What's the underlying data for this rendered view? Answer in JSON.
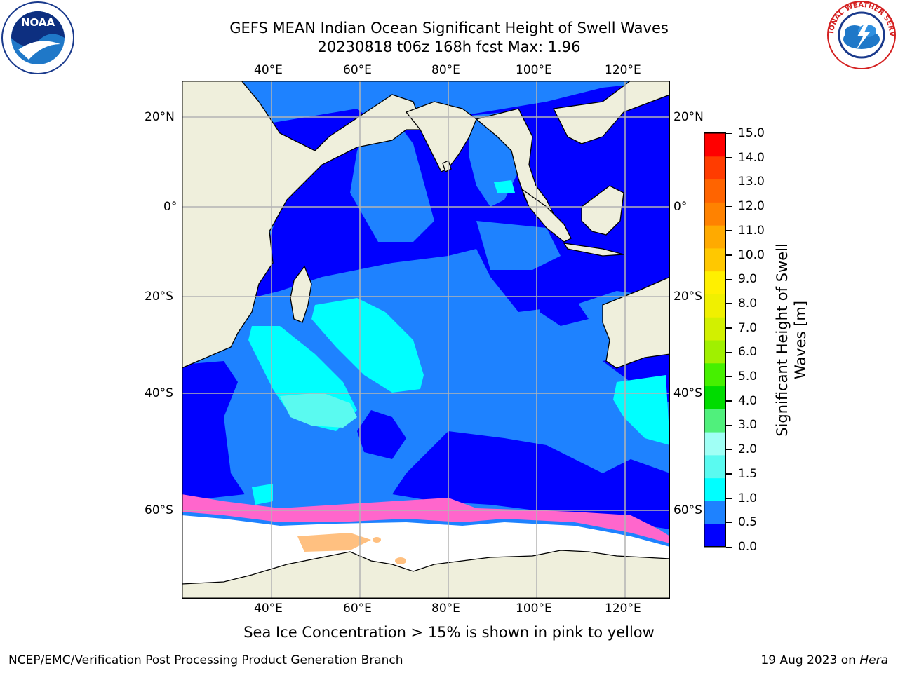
{
  "header": {
    "title_line1": "GEFS MEAN Indian Ocean Significant Height of Swell Waves",
    "title_line2": "20230818 t06z 168h fcst   Max: 1.96"
  },
  "logos": {
    "noara_text": "NOAA",
    "noaa_ring_text": "NATIONAL OCEANIC AND ATMOSPHERIC ADMINISTRATION · U.S. DEPARTMENT OF COMMERCE",
    "nws_ring_text": "NATIONAL WEATHER SERVICE"
  },
  "map": {
    "lon_ticks": [
      "40°E",
      "60°E",
      "80°E",
      "100°E",
      "120°E"
    ],
    "lat_ticks_left": [
      "20°N",
      "0°",
      "20°S",
      "40°S",
      "60°S"
    ],
    "lat_ticks_right": [
      "20°N",
      "0°",
      "20°S",
      "40°S",
      "60°S"
    ],
    "colors": {
      "land": "#efefdc",
      "ice": "#ffffff",
      "band_0_0.5": "#0000ff",
      "band_0.5_1": "#1e82ff",
      "band_1_1.5": "#00ffff",
      "band_1.5_2": "#5afaf0",
      "grid": "#b4b4b4"
    }
  },
  "colorbar": {
    "label_line1": "Significant Height of Swell",
    "label_line2": "Waves [m]",
    "ticks": [
      "15.0",
      "14.0",
      "13.0",
      "12.0",
      "11.0",
      "10.0",
      "9.0",
      "8.0",
      "7.0",
      "6.0",
      "5.0",
      "4.0",
      "3.0",
      "2.0",
      "1.5",
      "1.0",
      "0.5",
      "0.0"
    ],
    "colors": [
      "#0000ff",
      "#1e82ff",
      "#00ffff",
      "#5afaf0",
      "#a0fff5",
      "#50f07c",
      "#00dc00",
      "#46f000",
      "#a0f000",
      "#d2f000",
      "#f0f000",
      "#fff000",
      "#ffc800",
      "#ffaa00",
      "#ff8200",
      "#ff6400",
      "#ff3c00",
      "#ff0000"
    ]
  },
  "note": "Sea Ice Concentration > 15% is shown in pink to yellow",
  "footer": {
    "left": "NCEP/EMC/Verification Post Processing Product Generation Branch",
    "right_prefix": "19 Aug 2023 on ",
    "right_host": "Hera"
  }
}
